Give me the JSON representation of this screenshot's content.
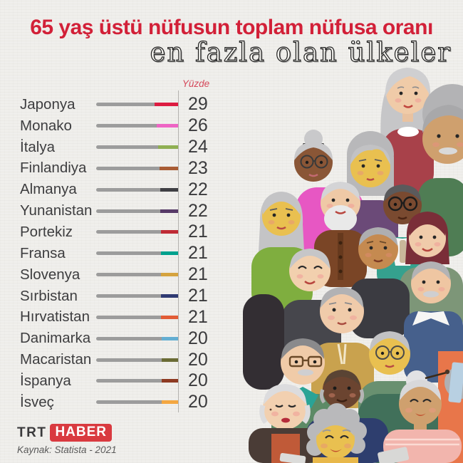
{
  "header": {
    "title_red": "65 yaş üstü nüfusun toplam nüfusa oranı",
    "title_serif": "en fazla olan ülkeler"
  },
  "chart_data": {
    "type": "bar",
    "title": "65 yaş üstü nüfusun toplam nüfusa oranı en fazla olan ülkeler",
    "unit_label": "Yüzde",
    "orientation": "horizontal",
    "bar_base_color": "#9c9c9c",
    "categories": [
      "Japonya",
      "Monako",
      "İtalya",
      "Finlandiya",
      "Almanya",
      "Yunanistan",
      "Portekiz",
      "Fransa",
      "Slovenya",
      "Sırbistan",
      "Hırvatistan",
      "Danimarka",
      "Macaristan",
      "İspanya",
      "İsveç"
    ],
    "values": [
      29,
      26,
      24,
      23,
      22,
      22,
      21,
      21,
      21,
      21,
      21,
      20,
      20,
      20,
      20
    ],
    "rows": [
      {
        "country": "Japonya",
        "value": 29,
        "tip_color": "#dd1c40"
      },
      {
        "country": "Monako",
        "value": 26,
        "tip_color": "#ee64c4"
      },
      {
        "country": "İtalya",
        "value": 24,
        "tip_color": "#8faf52"
      },
      {
        "country": "Finlandiya",
        "value": 23,
        "tip_color": "#a85c34"
      },
      {
        "country": "Almanya",
        "value": 22,
        "tip_color": "#3f3f44"
      },
      {
        "country": "Yunanistan",
        "value": 22,
        "tip_color": "#573a68"
      },
      {
        "country": "Portekiz",
        "value": 21,
        "tip_color": "#bf2b35"
      },
      {
        "country": "Fransa",
        "value": 21,
        "tip_color": "#00a18e"
      },
      {
        "country": "Slovenya",
        "value": 21,
        "tip_color": "#d5a33f"
      },
      {
        "country": "Sırbistan",
        "value": 21,
        "tip_color": "#2f3a72"
      },
      {
        "country": "Hırvatistan",
        "value": 21,
        "tip_color": "#e25c36"
      },
      {
        "country": "Danimarka",
        "value": 20,
        "tip_color": "#64aed2"
      },
      {
        "country": "Macaristan",
        "value": 20,
        "tip_color": "#6a6b35"
      },
      {
        "country": "İspanya",
        "value": 20,
        "tip_color": "#8e3a22"
      },
      {
        "country": "İsveç",
        "value": 20,
        "tip_color": "#f4a741"
      }
    ]
  },
  "footer": {
    "logo_trt": "TRT",
    "logo_haber": "HABER",
    "source": "Kaynak: Statista - 2021"
  },
  "illustration": {
    "alt": "crowd of elderly people"
  }
}
